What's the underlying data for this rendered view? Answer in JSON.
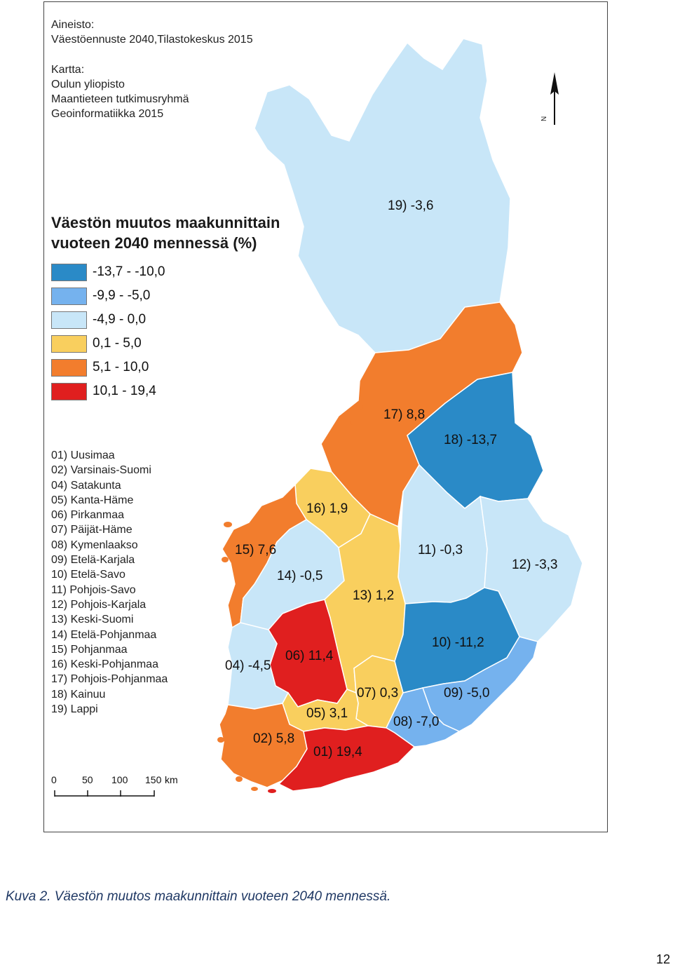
{
  "source": {
    "lines": [
      "Aineisto:",
      "Väestöennuste 2040,Tilastokeskus 2015"
    ]
  },
  "map_credit": {
    "lines": [
      "Kartta:",
      "Oulun yliopisto",
      "Maantieteen tutkimusryhmä",
      "Geoinformatiikka 2015"
    ]
  },
  "legend": {
    "title_lines": [
      "Väestön muutos maakunnittain",
      "vuoteen 2040 mennessä (%)"
    ],
    "classes": [
      {
        "label": "-13,7 - -10,0",
        "color": "#2a8ac7"
      },
      {
        "label": "-9,9 - -5,0",
        "color": "#75b2ee"
      },
      {
        "label": "-4,9 - 0,0",
        "color": "#c8e6f8"
      },
      {
        "label": "0,1 - 5,0",
        "color": "#f9cf5e"
      },
      {
        "label": "5,1 - 10,0",
        "color": "#f27d2d"
      },
      {
        "label": "10,1 - 19,4",
        "color": "#e01f1f"
      }
    ]
  },
  "region_list": [
    "01) Uusimaa",
    "02) Varsinais-Suomi",
    "04) Satakunta",
    "05) Kanta-Häme",
    "06) Pirkanmaa",
    "07) Päijät-Häme",
    "08) Kymenlaakso",
    "09) Etelä-Karjala",
    "10) Etelä-Savo",
    "11) Pohjois-Savo",
    "12) Pohjois-Karjala",
    "13) Keski-Suomi",
    "14) Etelä-Pohjanmaa",
    "15) Pohjanmaa",
    "16) Keski-Pohjanmaa",
    "17) Pohjois-Pohjanmaa",
    "18) Kainuu",
    "19) Lappi"
  ],
  "regions": [
    {
      "code": "19",
      "label": "19) -3,6",
      "value": -3.6
    },
    {
      "code": "17",
      "label": "17) 8,8",
      "value": 8.8
    },
    {
      "code": "18",
      "label": "18) -13,7",
      "value": -13.7
    },
    {
      "code": "16",
      "label": "16) 1,9",
      "value": 1.9
    },
    {
      "code": "15",
      "label": "15) 7,6",
      "value": 7.6
    },
    {
      "code": "14",
      "label": "14) -0,5",
      "value": -0.5
    },
    {
      "code": "11",
      "label": "11) -0,3",
      "value": -0.3
    },
    {
      "code": "12",
      "label": "12) -3,3",
      "value": -3.3
    },
    {
      "code": "13",
      "label": "13) 1,2",
      "value": 1.2
    },
    {
      "code": "10",
      "label": "10) -11,2",
      "value": -11.2
    },
    {
      "code": "06",
      "label": "06) 11,4",
      "value": 11.4
    },
    {
      "code": "04",
      "label": "04) -4,5",
      "value": -4.5
    },
    {
      "code": "07",
      "label": "07) 0,3",
      "value": 0.3
    },
    {
      "code": "09",
      "label": "09) -5,0",
      "value": -5.0
    },
    {
      "code": "05",
      "label": "05) 3,1",
      "value": 3.1
    },
    {
      "code": "08",
      "label": "08) -7,0",
      "value": -7.0
    },
    {
      "code": "02",
      "label": "02) 5,8",
      "value": 5.8
    },
    {
      "code": "01",
      "label": "01) 19,4",
      "value": 19.4
    }
  ],
  "north_arrow": {
    "label": "N"
  },
  "scale_bar": {
    "ticks": [
      "0",
      "50",
      "100"
    ],
    "last_tick": "150",
    "unit": "km"
  },
  "caption": "Kuva 2. Väestön muutos maakunnittain vuoteen 2040 mennessä.",
  "page_number": "12"
}
